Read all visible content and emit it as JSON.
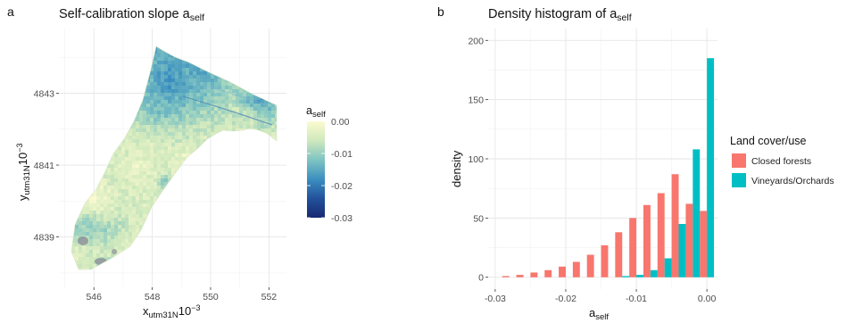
{
  "panel_a": {
    "letter": "a",
    "title_main": "Self-calibration slope a",
    "title_sub": "self",
    "xlabel_main": "x",
    "xlabel_sub": "utm31N",
    "xlabel_exp_base": "10",
    "xlabel_exp": "−3",
    "ylabel_main": "y",
    "ylabel_sub": "utm31N",
    "ylabel_exp_base": "10",
    "ylabel_exp": "−3",
    "x_ticks": [
      "546",
      "548",
      "550",
      "552"
    ],
    "y_ticks": [
      "4839",
      "4841",
      "4843"
    ],
    "colorbar": {
      "title_main": "a",
      "title_sub": "self",
      "ticks": [
        "0.00",
        "-0.01",
        "-0.02",
        "-0.03"
      ],
      "colors": [
        "#fbfbcf",
        "#cfe8bd",
        "#7fc4c2",
        "#3b8fc0",
        "#23519c",
        "#172a72"
      ]
    }
  },
  "panel_b": {
    "letter": "b",
    "title_main": "Density histogram of a",
    "title_sub": "self",
    "xlabel_main": "a",
    "xlabel_sub": "self",
    "ylabel": "density",
    "x_ticks": [
      "-0.03",
      "-0.02",
      "-0.01",
      "0.00"
    ],
    "y_ticks": [
      "0",
      "50",
      "100",
      "150",
      "200"
    ],
    "legend": {
      "title": "Land cover/use",
      "items": [
        {
          "label": "Closed forests",
          "color": "#f8766d"
        },
        {
          "label": "Vineyards/Orchards",
          "color": "#00bfc4"
        }
      ]
    }
  },
  "chart_data": [
    {
      "type": "heatmap",
      "xlim": [
        544.8,
        552.6
      ],
      "ylim": [
        4837.6,
        4844.8
      ],
      "x_ticks": [
        546,
        548,
        550,
        552
      ],
      "y_ticks": [
        4839,
        4841,
        4843
      ],
      "color_range": [
        -0.03,
        0.0
      ],
      "grid": true
    },
    {
      "type": "bar",
      "xlim": [
        -0.031,
        0.0015
      ],
      "ylim": [
        -10,
        210
      ],
      "x_ticks": [
        -0.03,
        -0.02,
        -0.01,
        0.0
      ],
      "y_ticks": [
        0,
        50,
        100,
        150,
        200
      ],
      "bin_width": 0.002,
      "grid": true,
      "legend_position": "right",
      "series": [
        {
          "name": "Closed forests",
          "color": "#f8766d",
          "bins": [
            -0.028,
            -0.026,
            -0.024,
            -0.022,
            -0.02,
            -0.018,
            -0.016,
            -0.014,
            -0.012,
            -0.01,
            -0.008,
            -0.006,
            -0.004,
            -0.002,
            0.0
          ],
          "values": [
            1,
            2,
            4,
            6,
            9,
            13,
            19,
            27,
            38,
            50,
            61,
            71,
            87,
            62,
            56
          ]
        },
        {
          "name": "Vineyards/Orchards",
          "color": "#00bfc4",
          "bins": [
            -0.028,
            -0.026,
            -0.024,
            -0.022,
            -0.02,
            -0.018,
            -0.016,
            -0.014,
            -0.012,
            -0.01,
            -0.008,
            -0.006,
            -0.004,
            -0.002,
            0.0
          ],
          "values": [
            0,
            0,
            0,
            0,
            0,
            0,
            0,
            0,
            1,
            2,
            6,
            16,
            45,
            108,
            185
          ]
        }
      ]
    }
  ]
}
